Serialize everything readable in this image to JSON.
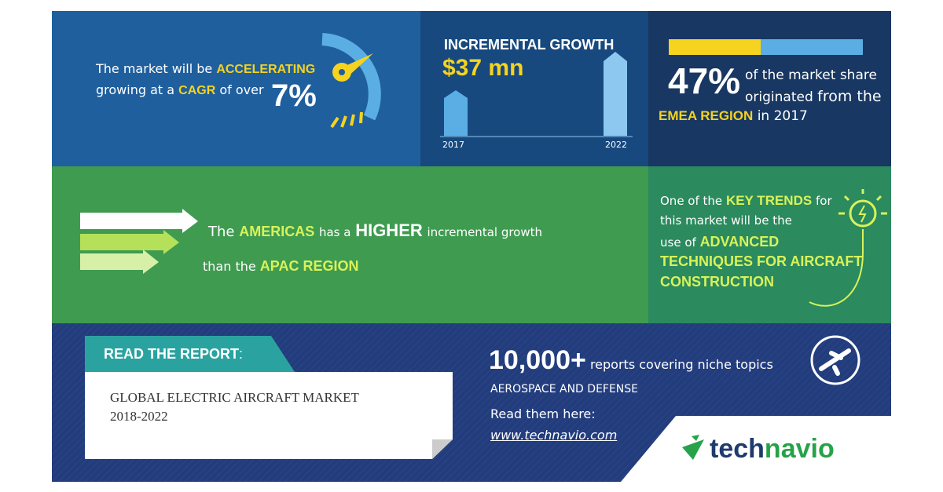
{
  "cagr": {
    "line1": "The market will be",
    "accent1": "ACCELERATING",
    "line2": "growing at a",
    "accent2": "CAGR",
    "line2b": "of over",
    "value": "7%"
  },
  "growth": {
    "title": "INCREMENTAL GROWTH",
    "value": "$37 mn",
    "start": "2017",
    "end": "2022"
  },
  "share": {
    "value": "47%",
    "line1": "of the market share",
    "line2a": "originated",
    "line2b": "from the",
    "region": "EMEA REGION",
    "year": "in 2017"
  },
  "americas": {
    "w1": "The",
    "w2": "AMERICAS",
    "w3": "has a",
    "w4": "HIGHER",
    "w5": "incremental growth",
    "w6": "than the",
    "w7": "APAC REGION"
  },
  "trends": {
    "t1": "One of the",
    "t2": "KEY TRENDS",
    "t3": "for",
    "t4": "this market will be the",
    "t5": "use of",
    "t6": "ADVANCED",
    "t7": "TECHNIQUES FOR AIRCRAFT",
    "t8": "CONSTRUCTION"
  },
  "report": {
    "label": "READ THE REPORT",
    "colon": ":",
    "title": "GLOBAL ELECTRIC AIRCRAFT MARKET",
    "years": "2018-2022"
  },
  "reports": {
    "count": "10,000+",
    "text": "reports covering niche topics",
    "sector": "AEROSPACE AND DEFENSE",
    "cta": "Read them here:",
    "url": "www.technavio.com"
  },
  "logo": {
    "a": "tech",
    "b": "navio"
  }
}
